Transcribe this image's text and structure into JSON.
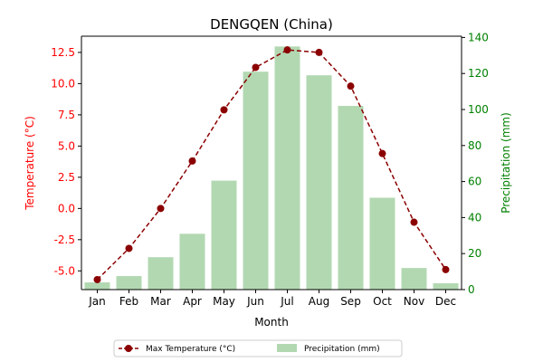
{
  "chart_data": {
    "type": "bar+line",
    "title": "DENGQEN (China)",
    "xlabel": "Month",
    "ylabel_left": "Temperature (°C)",
    "ylabel_right": "Precipitation (mm)",
    "categories": [
      "Jan",
      "Feb",
      "Mar",
      "Apr",
      "May",
      "Jun",
      "Jul",
      "Aug",
      "Sep",
      "Oct",
      "Nov",
      "Dec"
    ],
    "ylim_left": [
      -6.5,
      13.8
    ],
    "ylim_right": [
      0,
      140.7
    ],
    "yticks_left": [
      "-5.0",
      "-2.5",
      "0.0",
      "2.5",
      "5.0",
      "7.5",
      "10.0",
      "12.5"
    ],
    "yticks_left_values": [
      -5.0,
      -2.5,
      0.0,
      2.5,
      5.0,
      7.5,
      10.0,
      12.5
    ],
    "yticks_right": [
      "0",
      "20",
      "40",
      "60",
      "80",
      "100",
      "120",
      "140"
    ],
    "yticks_right_values": [
      0,
      20,
      40,
      60,
      80,
      100,
      120,
      140
    ],
    "series": [
      {
        "name": "Max Temperature (°C)",
        "kind": "line",
        "axis": "left",
        "color": "#8b0000",
        "values": [
          -5.7,
          -3.2,
          0.0,
          3.8,
          7.9,
          11.3,
          12.7,
          12.5,
          9.8,
          4.4,
          -1.1,
          -4.9
        ]
      },
      {
        "name": "Precipitation (mm)",
        "kind": "bar",
        "axis": "right",
        "color": "#b2d8b2",
        "values": [
          4,
          7.5,
          18,
          31,
          60.5,
          121,
          135,
          119,
          102,
          51,
          12,
          3.5
        ]
      }
    ],
    "legend_position": "bottom-center",
    "left_axis_color": "#ff0000",
    "right_axis_color": "#008000"
  }
}
